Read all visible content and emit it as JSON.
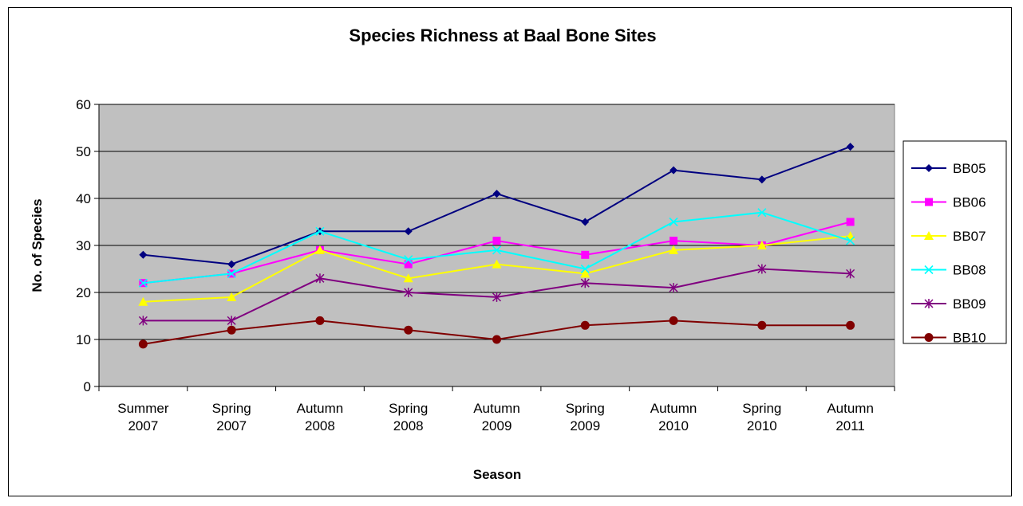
{
  "chart_data": {
    "type": "line",
    "title": "Species Richness at Baal Bone Sites",
    "xlabel": "Season",
    "ylabel": "No. of Species",
    "categories": [
      [
        "Summer",
        "2007"
      ],
      [
        "Spring",
        "2007"
      ],
      [
        "Autumn",
        "2008"
      ],
      [
        "Spring",
        "2008"
      ],
      [
        "Autumn",
        "2009"
      ],
      [
        "Spring",
        "2009"
      ],
      [
        "Autumn",
        "2010"
      ],
      [
        "Spring",
        "2010"
      ],
      [
        "Autumn",
        "2011"
      ]
    ],
    "ylim": [
      0,
      60
    ],
    "yticks": [
      "0",
      "10",
      "20",
      "30",
      "40",
      "50",
      "60"
    ],
    "grid": true,
    "plot_background": "#c0c0c0",
    "legend_position": "right",
    "series": [
      {
        "name": "BB05",
        "color": "#000080",
        "marker": "diamond",
        "values": [
          28,
          26,
          33,
          33,
          41,
          35,
          46,
          44,
          51
        ]
      },
      {
        "name": "BB06",
        "color": "#ff00ff",
        "marker": "square",
        "values": [
          22,
          24,
          29,
          26,
          31,
          28,
          31,
          30,
          35
        ]
      },
      {
        "name": "BB07",
        "color": "#ffff00",
        "marker": "triangle",
        "values": [
          18,
          19,
          29,
          23,
          26,
          24,
          29,
          30,
          32
        ]
      },
      {
        "name": "BB08",
        "color": "#00ffff",
        "marker": "x",
        "values": [
          22,
          24,
          33,
          27,
          29,
          25,
          35,
          37,
          31
        ]
      },
      {
        "name": "BB09",
        "color": "#800080",
        "marker": "asterisk",
        "values": [
          14,
          14,
          23,
          20,
          19,
          22,
          21,
          25,
          24
        ]
      },
      {
        "name": "BB10",
        "color": "#800000",
        "marker": "circle",
        "values": [
          9,
          12,
          14,
          12,
          10,
          13,
          14,
          13,
          13
        ]
      }
    ]
  }
}
